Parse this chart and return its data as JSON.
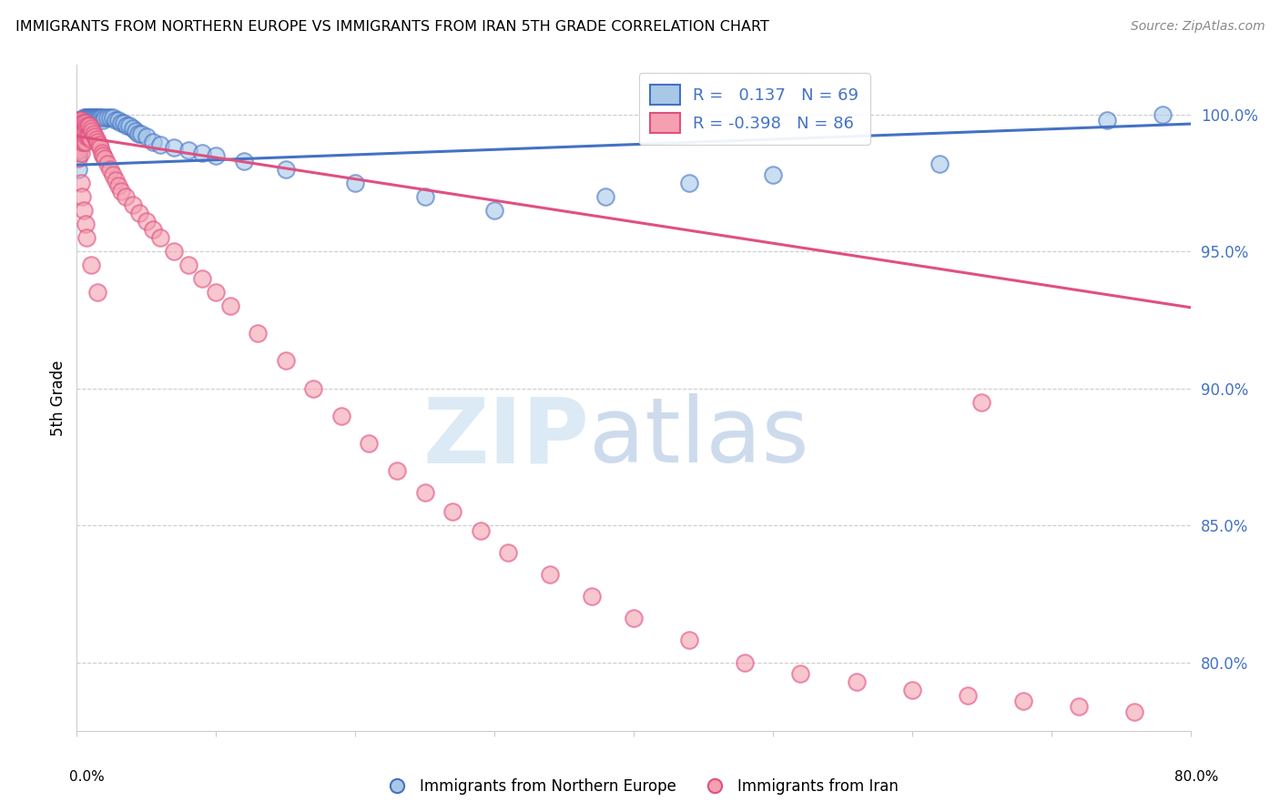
{
  "title": "IMMIGRANTS FROM NORTHERN EUROPE VS IMMIGRANTS FROM IRAN 5TH GRADE CORRELATION CHART",
  "source": "Source: ZipAtlas.com",
  "ylabel": "5th Grade",
  "ytick_labels": [
    "100.0%",
    "95.0%",
    "90.0%",
    "85.0%",
    "80.0%"
  ],
  "ytick_values": [
    1.0,
    0.95,
    0.9,
    0.85,
    0.8
  ],
  "xlim": [
    0.0,
    0.8
  ],
  "ylim": [
    0.775,
    1.018
  ],
  "legend_blue_label": "R =   0.137   N = 69",
  "legend_pink_label": "R = -0.398   N = 86",
  "blue_color": "#a8c8e8",
  "pink_color": "#f4a0b0",
  "blue_line_color": "#4472c4",
  "pink_line_color": "#e05080",
  "watermark_zip_color": "#d8e8f4",
  "watermark_atlas_color": "#c8d8ec",
  "blue_scatter_x": [
    0.001,
    0.001,
    0.001,
    0.002,
    0.002,
    0.002,
    0.002,
    0.003,
    0.003,
    0.003,
    0.003,
    0.004,
    0.004,
    0.004,
    0.005,
    0.005,
    0.005,
    0.006,
    0.006,
    0.006,
    0.007,
    0.007,
    0.008,
    0.008,
    0.009,
    0.009,
    0.01,
    0.01,
    0.011,
    0.012,
    0.013,
    0.014,
    0.015,
    0.016,
    0.017,
    0.018,
    0.019,
    0.02,
    0.022,
    0.024,
    0.026,
    0.028,
    0.03,
    0.032,
    0.034,
    0.036,
    0.038,
    0.04,
    0.042,
    0.044,
    0.046,
    0.05,
    0.055,
    0.06,
    0.07,
    0.08,
    0.09,
    0.1,
    0.12,
    0.15,
    0.2,
    0.25,
    0.3,
    0.38,
    0.44,
    0.5,
    0.62,
    0.74,
    0.78
  ],
  "blue_scatter_y": [
    0.99,
    0.985,
    0.98,
    0.998,
    0.995,
    0.992,
    0.988,
    0.998,
    0.996,
    0.993,
    0.989,
    0.998,
    0.996,
    0.992,
    0.999,
    0.997,
    0.994,
    0.999,
    0.997,
    0.994,
    0.999,
    0.996,
    0.999,
    0.996,
    0.999,
    0.997,
    0.999,
    0.997,
    0.999,
    0.999,
    0.999,
    0.999,
    0.999,
    0.999,
    0.999,
    0.999,
    0.998,
    0.999,
    0.999,
    0.999,
    0.999,
    0.998,
    0.998,
    0.997,
    0.997,
    0.996,
    0.996,
    0.995,
    0.994,
    0.993,
    0.993,
    0.992,
    0.99,
    0.989,
    0.988,
    0.987,
    0.986,
    0.985,
    0.983,
    0.98,
    0.975,
    0.97,
    0.965,
    0.97,
    0.975,
    0.978,
    0.982,
    0.998,
    1.0
  ],
  "pink_scatter_x": [
    0.001,
    0.001,
    0.001,
    0.001,
    0.002,
    0.002,
    0.002,
    0.002,
    0.003,
    0.003,
    0.003,
    0.003,
    0.004,
    0.004,
    0.004,
    0.005,
    0.005,
    0.005,
    0.006,
    0.006,
    0.006,
    0.007,
    0.007,
    0.008,
    0.008,
    0.009,
    0.009,
    0.01,
    0.01,
    0.011,
    0.012,
    0.013,
    0.014,
    0.015,
    0.016,
    0.017,
    0.018,
    0.019,
    0.02,
    0.022,
    0.024,
    0.026,
    0.028,
    0.03,
    0.032,
    0.035,
    0.04,
    0.045,
    0.05,
    0.055,
    0.06,
    0.07,
    0.08,
    0.09,
    0.1,
    0.11,
    0.13,
    0.15,
    0.17,
    0.19,
    0.21,
    0.23,
    0.25,
    0.27,
    0.29,
    0.31,
    0.34,
    0.37,
    0.4,
    0.44,
    0.48,
    0.52,
    0.56,
    0.6,
    0.64,
    0.68,
    0.72,
    0.76,
    0.003,
    0.004,
    0.005,
    0.006,
    0.007,
    0.01,
    0.015,
    0.65
  ],
  "pink_scatter_y": [
    0.995,
    0.992,
    0.988,
    0.984,
    0.998,
    0.995,
    0.991,
    0.987,
    0.998,
    0.995,
    0.991,
    0.986,
    0.997,
    0.994,
    0.99,
    0.997,
    0.994,
    0.99,
    0.997,
    0.994,
    0.99,
    0.996,
    0.992,
    0.996,
    0.992,
    0.996,
    0.992,
    0.995,
    0.991,
    0.994,
    0.993,
    0.992,
    0.991,
    0.99,
    0.989,
    0.988,
    0.986,
    0.985,
    0.984,
    0.982,
    0.98,
    0.978,
    0.976,
    0.974,
    0.972,
    0.97,
    0.967,
    0.964,
    0.961,
    0.958,
    0.955,
    0.95,
    0.945,
    0.94,
    0.935,
    0.93,
    0.92,
    0.91,
    0.9,
    0.89,
    0.88,
    0.87,
    0.862,
    0.855,
    0.848,
    0.84,
    0.832,
    0.824,
    0.816,
    0.808,
    0.8,
    0.796,
    0.793,
    0.79,
    0.788,
    0.786,
    0.784,
    0.782,
    0.975,
    0.97,
    0.965,
    0.96,
    0.955,
    0.945,
    0.935,
    0.895
  ],
  "blue_line_x": [
    0.0,
    0.8
  ],
  "blue_line_y": [
    0.9815,
    0.9965
  ],
  "pink_line_x": [
    0.0,
    0.8
  ],
  "pink_line_y": [
    0.992,
    0.9295
  ]
}
